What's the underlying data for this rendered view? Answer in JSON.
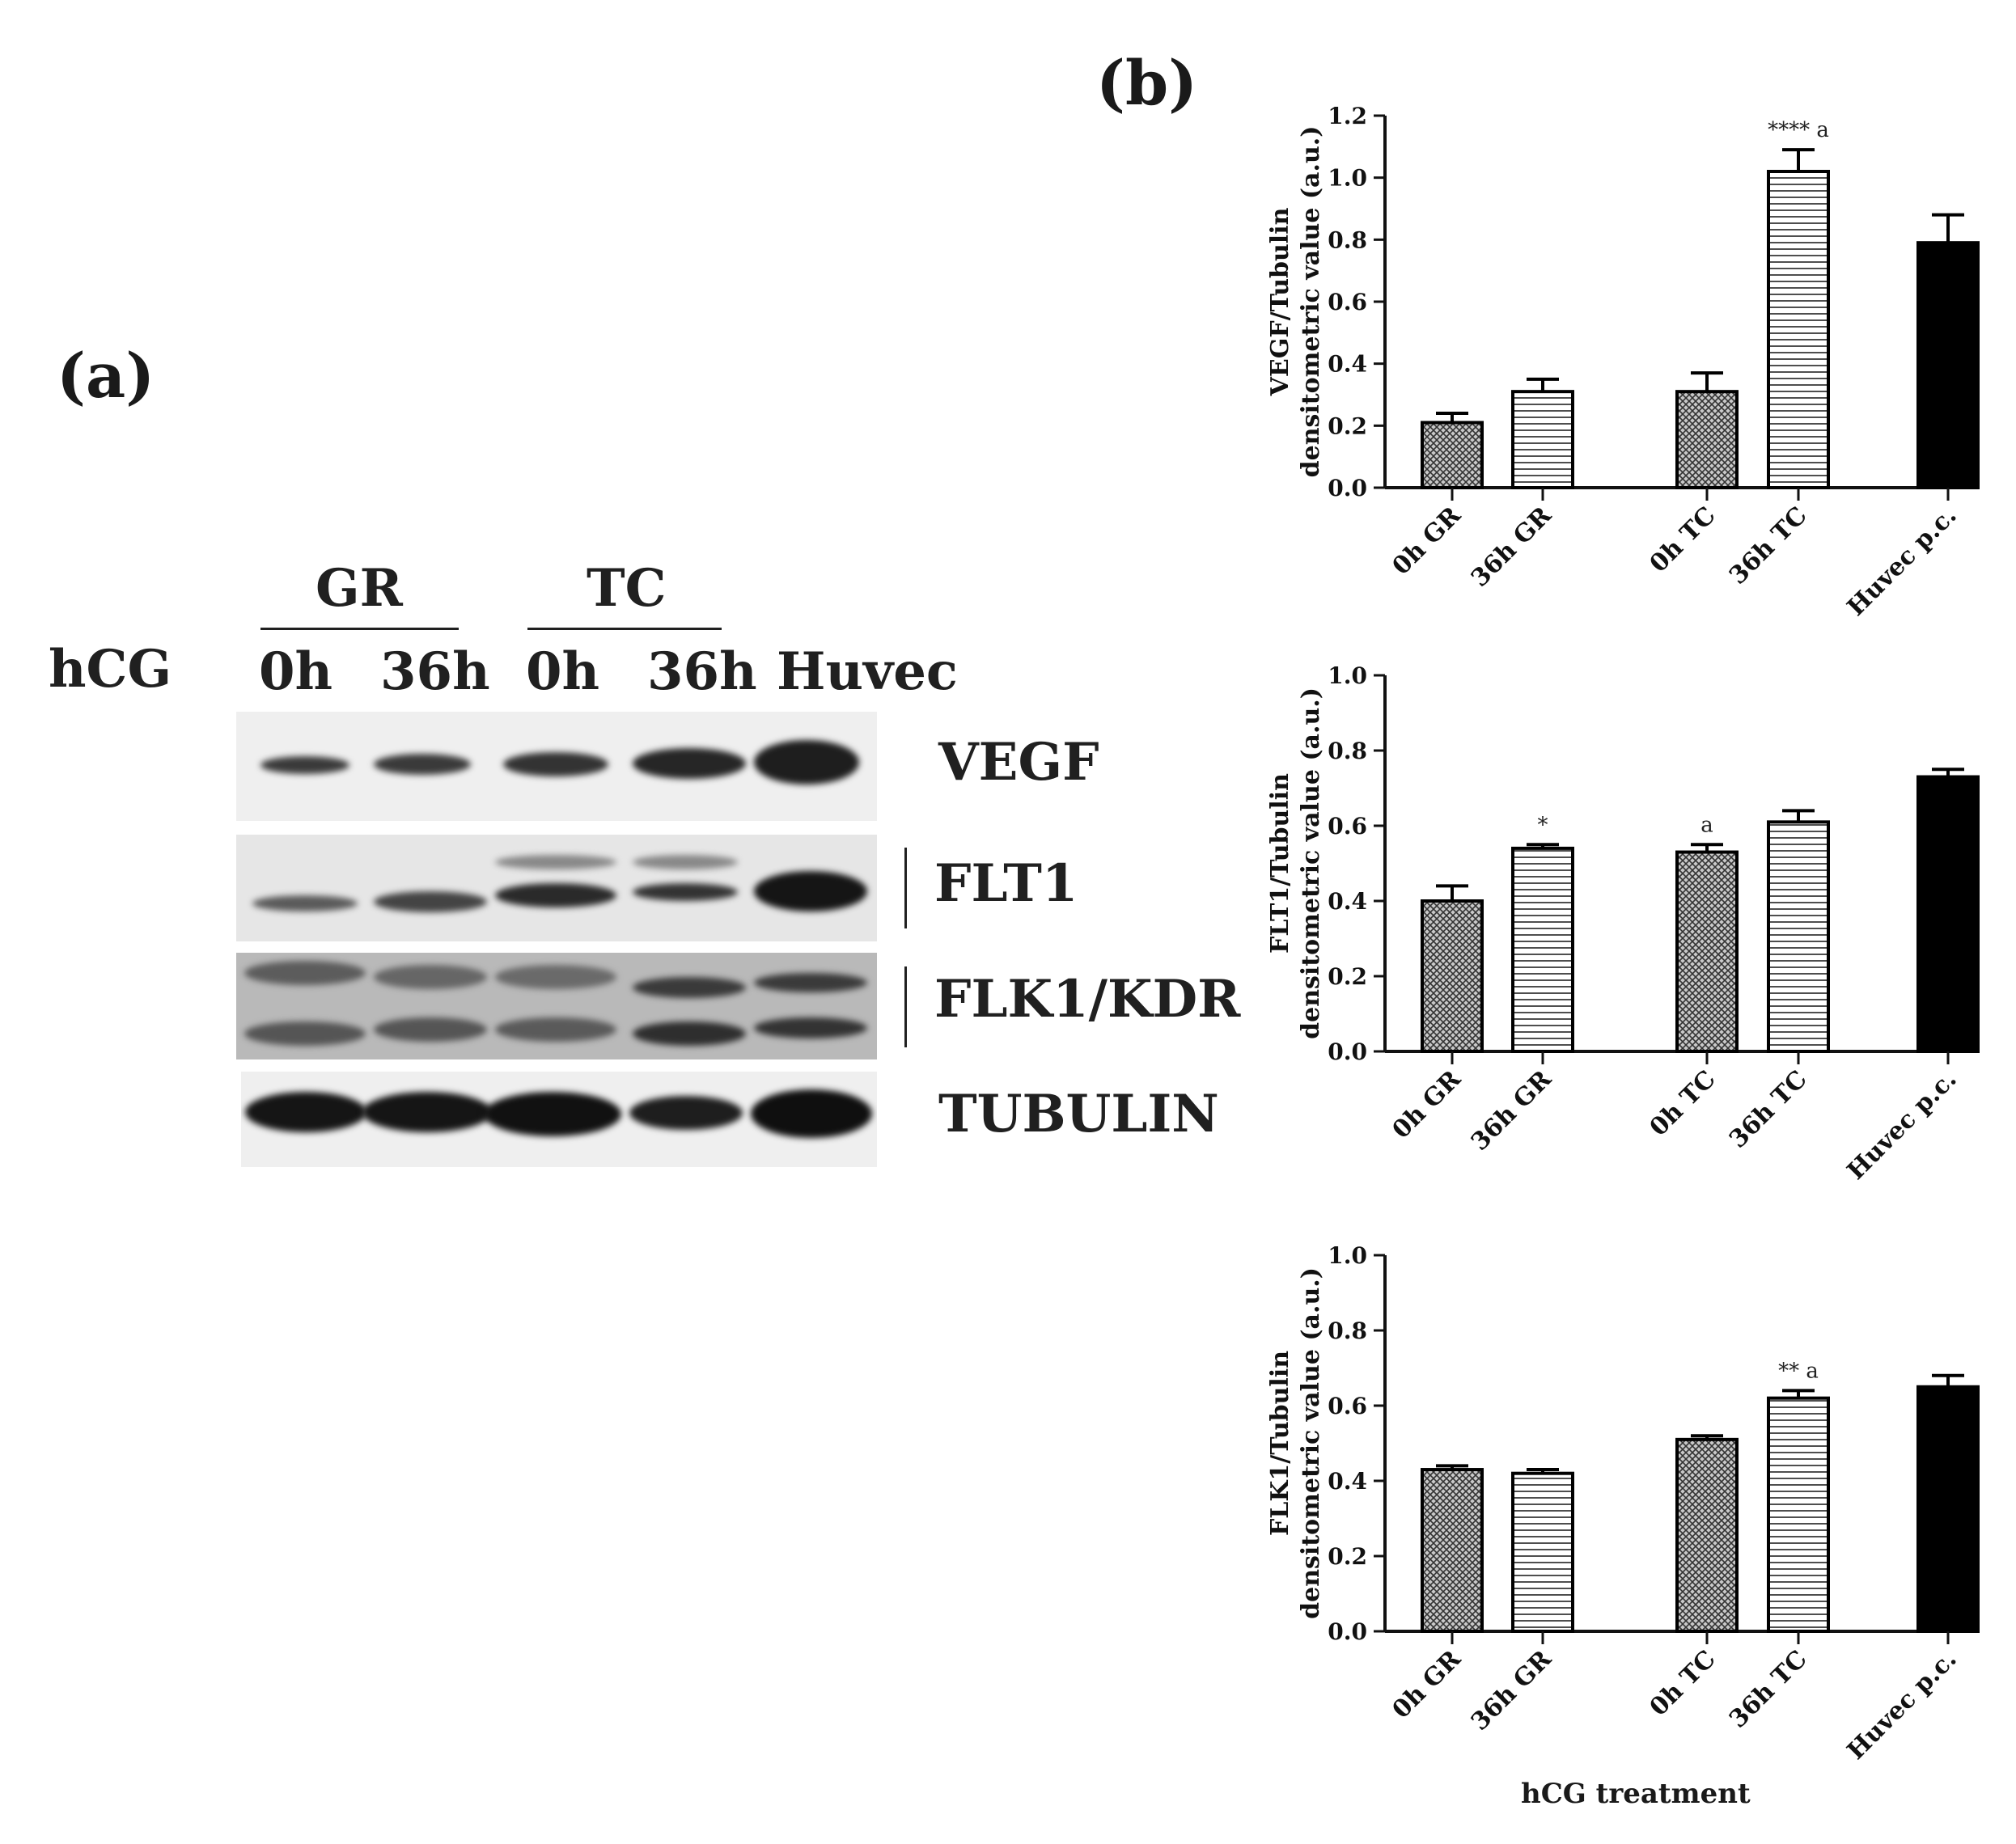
{
  "panel_a": {
    "label": "(a)",
    "row_label": "hCG",
    "groups": [
      "GR",
      "TC"
    ],
    "lanes": [
      "0h",
      "36h",
      "0h",
      "36h",
      "Huvec"
    ],
    "proteins": [
      "VEGF",
      "FLT1",
      "FLK1/KDR",
      "TUBULIN"
    ]
  },
  "panel_b": {
    "label": "(b)",
    "xlabel": "hCG treatment"
  },
  "chart_data": [
    {
      "type": "bar",
      "ylabel_line1": "VEGF/Tubulin",
      "ylabel_line2": "densitometric value (a.u.)",
      "categories": [
        "0h GR",
        "36h GR",
        "0h TC",
        "36h TC",
        "Huvec p.c."
      ],
      "values": [
        0.21,
        0.31,
        0.31,
        1.02,
        0.79
      ],
      "errors": [
        0.03,
        0.04,
        0.06,
        0.07,
        0.09
      ],
      "annotations": [
        "",
        "",
        "",
        "**** a",
        ""
      ],
      "ylim": [
        0,
        1.2
      ],
      "yticks": [
        "0.0",
        "0.2",
        "0.4",
        "0.6",
        "0.8",
        "1.0",
        "1.2"
      ],
      "patterns": [
        "crosshatch",
        "horizontal",
        "crosshatch",
        "horizontal",
        "solid"
      ]
    },
    {
      "type": "bar",
      "ylabel_line1": "FLT1/Tubulin",
      "ylabel_line2": "densitometric value (a.u.)",
      "categories": [
        "0h GR",
        "36h GR",
        "0h TC",
        "36h TC",
        "Huvec p.c."
      ],
      "values": [
        0.4,
        0.54,
        0.53,
        0.61,
        0.73
      ],
      "errors": [
        0.04,
        0.01,
        0.02,
        0.03,
        0.02
      ],
      "annotations": [
        "",
        "*",
        "a",
        "",
        ""
      ],
      "ylim": [
        0,
        1.0
      ],
      "yticks": [
        "0.0",
        "0.2",
        "0.4",
        "0.6",
        "0.8",
        "1.0"
      ],
      "patterns": [
        "crosshatch",
        "horizontal",
        "crosshatch",
        "horizontal",
        "solid"
      ]
    },
    {
      "type": "bar",
      "ylabel_line1": "FLK1/Tubulin",
      "ylabel_line2": "densitometric value (a.u.)",
      "categories": [
        "0h GR",
        "36h GR",
        "0h TC",
        "36h TC",
        "Huvec p.c."
      ],
      "values": [
        0.43,
        0.42,
        0.51,
        0.62,
        0.65
      ],
      "errors": [
        0.01,
        0.01,
        0.01,
        0.02,
        0.03
      ],
      "annotations": [
        "",
        "",
        "",
        "** a",
        ""
      ],
      "ylim": [
        0,
        1.0
      ],
      "yticks": [
        "0.0",
        "0.2",
        "0.4",
        "0.6",
        "0.8",
        "1.0"
      ],
      "patterns": [
        "crosshatch",
        "horizontal",
        "crosshatch",
        "horizontal",
        "solid"
      ]
    }
  ]
}
